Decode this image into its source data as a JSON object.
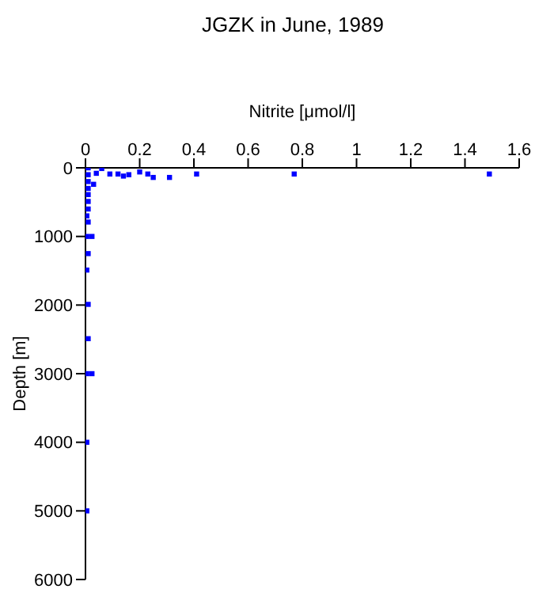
{
  "chart_data": {
    "type": "scatter",
    "title": "JGZK in June, 1989",
    "xlabel": "Nitrite [μmol/l]",
    "ylabel": "Depth [m]",
    "x": [
      0.01,
      0.06,
      0.01,
      0.04,
      0.09,
      0.12,
      0.14,
      0.16,
      0.2,
      0.23,
      0.25,
      0.31,
      0.41,
      0.77,
      1.49,
      0.01,
      0.03,
      0.01,
      0.01,
      0.01,
      0.01,
      0.005,
      0.01,
      0.005,
      0.024,
      0.01,
      0.005,
      0.01,
      0.01,
      0.005,
      0.024,
      0.005,
      0.005
    ],
    "values": [
      0,
      10,
      100,
      80,
      90,
      90,
      120,
      100,
      60,
      90,
      140,
      140,
      90,
      90,
      90,
      200,
      240,
      300,
      390,
      490,
      600,
      700,
      790,
      1000,
      1000,
      1250,
      1490,
      1990,
      2490,
      3000,
      3000,
      4000,
      5000
    ],
    "color": "#0000ff",
    "marker": "square",
    "xlim": [
      0,
      1.6
    ],
    "xticks": [
      0,
      0.2,
      0.4,
      0.6,
      0.8,
      1,
      1.2,
      1.4,
      1.6
    ],
    "ylim": [
      6000,
      0
    ],
    "yticks": [
      0,
      1000,
      2000,
      3000,
      4000,
      5000,
      6000
    ],
    "grid": false
  }
}
